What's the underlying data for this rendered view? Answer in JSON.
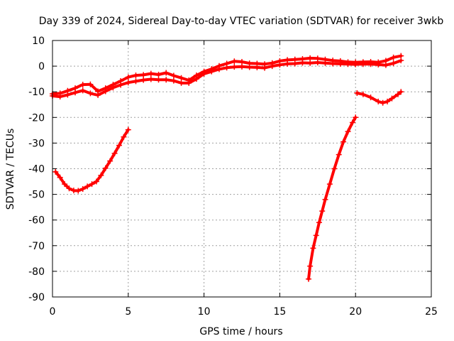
{
  "chart_data": {
    "type": "scatter",
    "title": "Day 339 of 2024, Sidereal Day-to-day VTEC variation (SDTVAR) for receiver 3wkb",
    "xlabel": "GPS time / hours",
    "ylabel": "SDTVAR / TECUs",
    "xlim": [
      0,
      25
    ],
    "ylim": [
      -90,
      10
    ],
    "xticks": [
      0,
      5,
      10,
      15,
      20,
      25
    ],
    "yticks": [
      -90,
      -80,
      -70,
      -60,
      -50,
      -40,
      -30,
      -20,
      -10,
      0,
      10
    ],
    "grid": true,
    "legend": "none",
    "colors": {
      "series": "#ff0000",
      "grid": "#a0a0a0",
      "axes": "#000000"
    },
    "series": [
      {
        "name": "main-band-low",
        "points": [
          [
            0.0,
            -11.6
          ],
          [
            0.5,
            -11.9
          ],
          [
            1.0,
            -11.2
          ],
          [
            1.5,
            -10.3
          ],
          [
            2.0,
            -9.5
          ],
          [
            2.5,
            -10.6
          ],
          [
            3.0,
            -11.3
          ],
          [
            3.5,
            -9.8
          ],
          [
            4.0,
            -8.4
          ],
          [
            4.5,
            -7.3
          ],
          [
            5.0,
            -6.4
          ],
          [
            5.5,
            -5.9
          ],
          [
            6.0,
            -5.4
          ],
          [
            6.5,
            -5.1
          ],
          [
            7.0,
            -5.3
          ],
          [
            7.5,
            -5.3
          ],
          [
            8.0,
            -5.7
          ],
          [
            8.5,
            -6.6
          ],
          [
            9.0,
            -6.6
          ],
          [
            9.5,
            -5.0
          ],
          [
            10.0,
            -3.0
          ],
          [
            10.5,
            -2.1
          ],
          [
            11.0,
            -1.2
          ],
          [
            11.5,
            -0.6
          ],
          [
            12.0,
            -0.3
          ],
          [
            12.5,
            -0.2
          ],
          [
            13.0,
            -0.4
          ],
          [
            13.5,
            -0.5
          ],
          [
            14.0,
            -0.7
          ],
          [
            14.5,
            0.0
          ],
          [
            15.0,
            0.5
          ],
          [
            15.5,
            0.9
          ],
          [
            16.0,
            1.0
          ],
          [
            16.5,
            1.3
          ],
          [
            17.0,
            1.2
          ],
          [
            17.5,
            1.4
          ],
          [
            18.0,
            1.2
          ],
          [
            18.5,
            1.0
          ],
          [
            19.0,
            0.9
          ],
          [
            19.5,
            0.8
          ],
          [
            20.0,
            0.7
          ],
          [
            20.5,
            0.8
          ],
          [
            21.0,
            0.8
          ],
          [
            21.5,
            0.6
          ],
          [
            22.0,
            0.4
          ],
          [
            22.5,
            1.1
          ],
          [
            23.0,
            2.2
          ]
        ]
      },
      {
        "name": "main-band-high",
        "points": [
          [
            0.0,
            -10.8
          ],
          [
            0.5,
            -10.6
          ],
          [
            1.0,
            -9.6
          ],
          [
            1.5,
            -8.6
          ],
          [
            2.0,
            -7.2
          ],
          [
            2.5,
            -7.1
          ],
          [
            3.0,
            -9.8
          ],
          [
            3.5,
            -8.6
          ],
          [
            4.0,
            -7.2
          ],
          [
            4.5,
            -5.8
          ],
          [
            5.0,
            -4.3
          ],
          [
            5.5,
            -3.6
          ],
          [
            6.0,
            -3.4
          ],
          [
            6.5,
            -2.9
          ],
          [
            7.0,
            -3.3
          ],
          [
            7.5,
            -2.6
          ],
          [
            8.0,
            -3.7
          ],
          [
            8.5,
            -4.6
          ],
          [
            9.0,
            -5.5
          ],
          [
            9.5,
            -3.6
          ],
          [
            10.0,
            -2.1
          ],
          [
            10.5,
            -1.1
          ],
          [
            11.0,
            0.1
          ],
          [
            11.5,
            1.0
          ],
          [
            12.0,
            1.9
          ],
          [
            12.5,
            1.7
          ],
          [
            13.0,
            1.1
          ],
          [
            13.5,
            1.0
          ],
          [
            14.0,
            0.8
          ],
          [
            14.5,
            1.2
          ],
          [
            15.0,
            2.0
          ],
          [
            15.5,
            2.4
          ],
          [
            16.0,
            2.6
          ],
          [
            16.5,
            2.8
          ],
          [
            17.0,
            3.1
          ],
          [
            17.5,
            3.0
          ],
          [
            18.0,
            2.6
          ],
          [
            18.5,
            2.2
          ],
          [
            19.0,
            2.0
          ],
          [
            19.5,
            1.6
          ],
          [
            20.0,
            1.5
          ],
          [
            20.5,
            1.6
          ],
          [
            21.0,
            1.7
          ],
          [
            21.5,
            1.5
          ],
          [
            22.0,
            2.1
          ],
          [
            22.5,
            3.4
          ],
          [
            23.0,
            4.0
          ]
        ]
      },
      {
        "name": "early-arc",
        "points": [
          [
            0.2,
            -41.2
          ],
          [
            0.5,
            -43.4
          ],
          [
            0.8,
            -46.0
          ],
          [
            1.1,
            -47.7
          ],
          [
            1.4,
            -48.5
          ],
          [
            1.7,
            -48.6
          ],
          [
            2.0,
            -47.9
          ],
          [
            2.3,
            -46.9
          ],
          [
            2.6,
            -46.0
          ],
          [
            2.9,
            -45.0
          ],
          [
            3.2,
            -42.6
          ],
          [
            3.5,
            -39.8
          ],
          [
            3.8,
            -37.0
          ],
          [
            4.1,
            -34.0
          ],
          [
            4.4,
            -30.9
          ],
          [
            4.7,
            -27.6
          ],
          [
            5.0,
            -24.8
          ]
        ]
      },
      {
        "name": "steep-rise",
        "points": [
          [
            16.9,
            -83.0
          ],
          [
            17.0,
            -78.0
          ],
          [
            17.2,
            -71.0
          ],
          [
            17.4,
            -66.0
          ],
          [
            17.6,
            -61.0
          ],
          [
            17.8,
            -56.5
          ],
          [
            18.0,
            -52.0
          ],
          [
            18.3,
            -46.0
          ],
          [
            18.6,
            -40.0
          ],
          [
            18.9,
            -34.5
          ],
          [
            19.2,
            -29.5
          ],
          [
            19.5,
            -25.5
          ],
          [
            19.8,
            -22.0
          ],
          [
            20.0,
            -20.0
          ]
        ]
      },
      {
        "name": "late-dip",
        "points": [
          [
            20.1,
            -10.5
          ],
          [
            20.5,
            -11.0
          ],
          [
            21.0,
            -12.2
          ],
          [
            21.5,
            -13.8
          ],
          [
            21.8,
            -14.3
          ],
          [
            22.1,
            -13.8
          ],
          [
            22.4,
            -12.6
          ],
          [
            22.8,
            -11.0
          ],
          [
            23.0,
            -10.0
          ]
        ]
      }
    ]
  }
}
